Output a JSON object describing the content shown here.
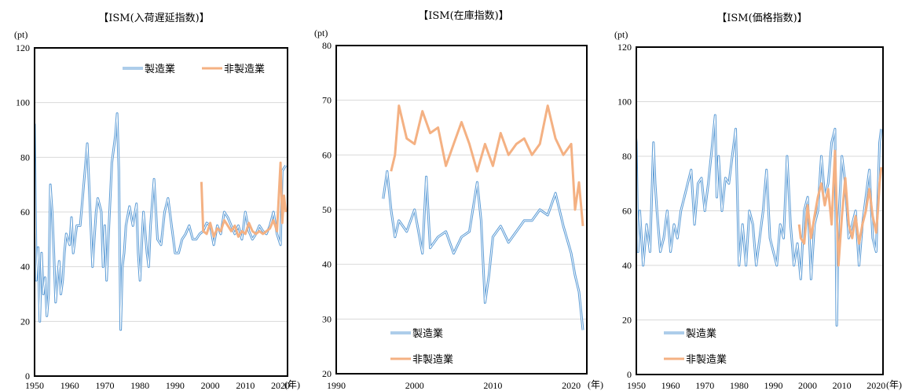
{
  "colors": {
    "manufacturing": "#5b9bd5",
    "non_manufacturing": "#f4b183",
    "grid": "#d9d9d9",
    "frame": "#000000"
  },
  "chart_data": [
    {
      "type": "line",
      "title": "【ISM(入荷遅延指数)】",
      "ylabel": "(pt)",
      "xlabel": "(年)",
      "ylim": [
        0,
        120
      ],
      "yticks": [
        0,
        20,
        40,
        60,
        80,
        100,
        120
      ],
      "xlim": [
        1950,
        2022
      ],
      "xticks": [
        1950,
        1960,
        1970,
        1980,
        1990,
        2000,
        2010,
        2020
      ],
      "legend_position": "top-right",
      "series": [
        {
          "name": "製造業",
          "color": "#5b9bd5",
          "x": [
            1948.5,
            1949.0,
            1949.5,
            1950.0,
            1950.5,
            1951.0,
            1951.5,
            1952.0,
            1952.5,
            1953.0,
            1953.5,
            1954.0,
            1954.5,
            1955.0,
            1955.5,
            1956.0,
            1956.5,
            1957.0,
            1957.5,
            1958.0,
            1958.5,
            1959.0,
            1960.0,
            1960.5,
            1961.0,
            1962.0,
            1963.0,
            1964.0,
            1965.0,
            1966.0,
            1966.5,
            1967.0,
            1967.5,
            1968.0,
            1969.0,
            1969.5,
            1970.0,
            1970.5,
            1971.0,
            1972.0,
            1973.0,
            1973.5,
            1974.0,
            1974.5,
            1975.0,
            1975.5,
            1976.0,
            1977.0,
            1978.0,
            1979.0,
            1979.5,
            1980.0,
            1980.5,
            1981.0,
            1982.0,
            1982.5,
            1983.0,
            1984.0,
            1985.0,
            1986.0,
            1987.0,
            1988.0,
            1989.0,
            1990.0,
            1991.0,
            1992.0,
            1993.0,
            1994.0,
            1995.0,
            1996.0,
            1997.0,
            1998.0,
            1999.0,
            2000.0,
            2001.0,
            2002.0,
            2003.0,
            2004.0,
            2005.0,
            2006.0,
            2007.0,
            2008.0,
            2009.0,
            2010.0,
            2011.0,
            2012.0,
            2013.0,
            2014.0,
            2015.0,
            2016.0,
            2017.0,
            2018.0,
            2019.0,
            2020.0,
            2020.5,
            2021.0,
            2021.5
          ],
          "values": [
            55,
            93,
            70,
            92,
            35,
            47,
            20,
            45,
            30,
            36,
            22,
            30,
            70,
            60,
            45,
            27,
            35,
            42,
            30,
            35,
            45,
            52,
            48,
            58,
            45,
            55,
            55,
            70,
            85,
            55,
            40,
            50,
            60,
            65,
            60,
            40,
            55,
            35,
            50,
            78,
            88,
            96,
            75,
            17,
            40,
            45,
            55,
            62,
            55,
            63,
            45,
            35,
            48,
            60,
            45,
            40,
            55,
            72,
            50,
            48,
            60,
            65,
            55,
            45,
            45,
            50,
            52,
            55,
            50,
            50,
            52,
            53,
            56,
            55,
            48,
            55,
            52,
            60,
            58,
            55,
            52,
            55,
            50,
            60,
            53,
            50,
            52,
            55,
            53,
            52,
            55,
            60,
            52,
            48,
            75,
            76,
            77
          ]
        },
        {
          "name": "非製造業",
          "color": "#f4b183",
          "x": [
            1997.5,
            1998.0,
            1999.0,
            2000.0,
            2001.0,
            2002.0,
            2003.0,
            2004.0,
            2005.0,
            2006.0,
            2007.0,
            2008.0,
            2009.0,
            2010.0,
            2011.0,
            2012.0,
            2013.0,
            2014.0,
            2015.0,
            2016.0,
            2017.0,
            2018.0,
            2019.0,
            2020.0,
            2020.5,
            2021.0,
            2021.5
          ],
          "values": [
            71,
            53,
            52,
            56,
            51,
            54,
            53,
            57,
            55,
            53,
            55,
            51,
            53,
            52,
            56,
            53,
            52,
            53,
            52,
            53,
            54,
            57,
            53,
            78,
            56,
            66,
            60
          ]
        }
      ]
    },
    {
      "type": "line",
      "title": "【ISM(在庫指数)】",
      "ylabel": "(pt)",
      "xlabel": "(年)",
      "ylim": [
        20,
        80
      ],
      "yticks": [
        20,
        30,
        40,
        50,
        60,
        70,
        80
      ],
      "xlim": [
        1990,
        2022
      ],
      "xticks": [
        1990,
        2000,
        2010,
        2020
      ],
      "legend_position": "bottom-left",
      "series": [
        {
          "name": "製造業",
          "color": "#5b9bd5",
          "x": [
            1996.0,
            1996.5,
            1997.0,
            1997.5,
            1998.0,
            1999.0,
            2000.0,
            2001.0,
            2001.5,
            2002.0,
            2003.0,
            2004.0,
            2005.0,
            2006.0,
            2007.0,
            2008.0,
            2008.5,
            2009.0,
            2009.5,
            2010.0,
            2011.0,
            2012.0,
            2013.0,
            2014.0,
            2015.0,
            2016.0,
            2017.0,
            2018.0,
            2019.0,
            2020.0,
            2020.5,
            2021.0,
            2021.5
          ],
          "values": [
            52,
            57,
            50,
            45,
            48,
            46,
            50,
            42,
            56,
            43,
            45,
            46,
            42,
            45,
            46,
            55,
            48,
            33,
            38,
            45,
            47,
            44,
            46,
            48,
            48,
            50,
            49,
            53,
            47,
            42,
            38,
            35,
            28
          ]
        },
        {
          "name": "非製造業",
          "color": "#f4b183",
          "x": [
            1997.0,
            1997.5,
            1998.0,
            1999.0,
            2000.0,
            2001.0,
            2002.0,
            2003.0,
            2004.0,
            2005.0,
            2006.0,
            2007.0,
            2008.0,
            2009.0,
            2010.0,
            2011.0,
            2012.0,
            2013.0,
            2014.0,
            2015.0,
            2016.0,
            2017.0,
            2018.0,
            2019.0,
            2020.0,
            2020.5,
            2021.0,
            2021.5
          ],
          "values": [
            57,
            60,
            69,
            63,
            62,
            68,
            64,
            65,
            58,
            62,
            66,
            62,
            57,
            62,
            58,
            64,
            60,
            62,
            63,
            60,
            62,
            69,
            63,
            60,
            62,
            50,
            55,
            47
          ]
        }
      ]
    },
    {
      "type": "line",
      "title": "【ISM(価格指数)】",
      "ylabel": "(pt)",
      "xlabel": "(年)",
      "ylim": [
        0,
        120
      ],
      "yticks": [
        0,
        20,
        40,
        60,
        80,
        100,
        120
      ],
      "xlim": [
        1950,
        2022
      ],
      "xticks": [
        1950,
        1960,
        1970,
        1980,
        1990,
        2000,
        2010,
        2020
      ],
      "legend_position": "bottom-left",
      "series": [
        {
          "name": "製造業",
          "color": "#5b9bd5",
          "x": [
            1948.5,
            1949.0,
            1950.0,
            1950.5,
            1951.0,
            1952.0,
            1953.0,
            1954.0,
            1955.0,
            1955.5,
            1956.0,
            1957.0,
            1958.0,
            1959.0,
            1960.0,
            1961.0,
            1962.0,
            1963.0,
            1964.0,
            1965.0,
            1966.0,
            1967.0,
            1968.0,
            1969.0,
            1970.0,
            1971.0,
            1972.0,
            1973.0,
            1973.5,
            1974.0,
            1975.0,
            1976.0,
            1977.0,
            1978.0,
            1979.0,
            1980.0,
            1981.0,
            1982.0,
            1983.0,
            1984.0,
            1985.0,
            1986.0,
            1987.0,
            1988.0,
            1989.0,
            1990.0,
            1991.0,
            1992.0,
            1993.0,
            1994.0,
            1995.0,
            1996.0,
            1997.0,
            1998.0,
            1999.0,
            2000.0,
            2001.0,
            2002.0,
            2003.0,
            2004.0,
            2005.0,
            2006.0,
            2007.0,
            2008.0,
            2008.5,
            2009.0,
            2010.0,
            2011.0,
            2012.0,
            2013.0,
            2014.0,
            2015.0,
            2016.0,
            2017.0,
            2018.0,
            2019.0,
            2020.0,
            2021.0,
            2021.5
          ],
          "values": [
            60,
            100,
            85,
            45,
            60,
            40,
            55,
            45,
            85,
            70,
            60,
            45,
            50,
            60,
            45,
            55,
            50,
            60,
            65,
            70,
            75,
            55,
            70,
            72,
            60,
            70,
            82,
            95,
            65,
            80,
            60,
            72,
            70,
            80,
            90,
            40,
            55,
            40,
            60,
            55,
            40,
            50,
            60,
            75,
            50,
            45,
            40,
            55,
            50,
            80,
            55,
            40,
            48,
            35,
            60,
            65,
            35,
            55,
            60,
            80,
            65,
            70,
            85,
            90,
            18,
            55,
            80,
            70,
            50,
            55,
            60,
            40,
            55,
            65,
            75,
            50,
            45,
            85,
            90
          ]
        },
        {
          "name": "非製造業",
          "color": "#f4b183",
          "x": [
            1997.5,
            1998.0,
            1999.0,
            2000.0,
            2001.0,
            2002.0,
            2003.0,
            2004.0,
            2005.0,
            2006.0,
            2007.0,
            2008.0,
            2008.5,
            2009.0,
            2010.0,
            2011.0,
            2012.0,
            2013.0,
            2014.0,
            2015.0,
            2016.0,
            2017.0,
            2018.0,
            2019.0,
            2020.0,
            2020.5,
            2021.0,
            2021.5
          ],
          "values": [
            55,
            50,
            48,
            62,
            50,
            58,
            65,
            70,
            62,
            68,
            55,
            82,
            60,
            40,
            58,
            72,
            55,
            50,
            58,
            48,
            55,
            60,
            68,
            58,
            52,
            60,
            70,
            76
          ]
        }
      ]
    }
  ]
}
